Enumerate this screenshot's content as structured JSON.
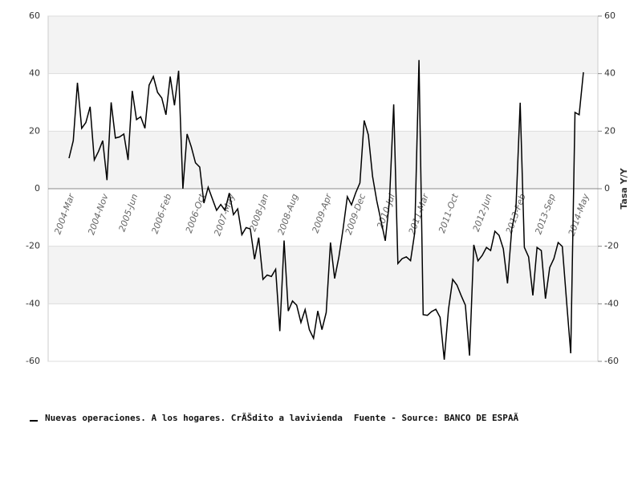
{
  "chart_data": {
    "type": "line",
    "y_label": "Tasa Y/Y",
    "source": "Fuente - Source: BANCO DE ESPAÃ",
    "ylim": [
      -60,
      60
    ],
    "yticks": [
      -60,
      -40,
      -20,
      0,
      20,
      40,
      60
    ],
    "grid": true,
    "categories": [
      "2004-Mar",
      null,
      null,
      null,
      null,
      null,
      null,
      null,
      "2004-Nov",
      null,
      null,
      null,
      null,
      null,
      null,
      "2005-Jun",
      null,
      null,
      null,
      null,
      null,
      null,
      null,
      "2006-Feb",
      null,
      null,
      null,
      null,
      null,
      null,
      null,
      "2006-Oct",
      null,
      null,
      null,
      null,
      null,
      null,
      "2007-May",
      null,
      null,
      null,
      null,
      null,
      null,
      null,
      "2008-Jan",
      null,
      null,
      null,
      null,
      null,
      null,
      "2008-Aug",
      null,
      null,
      null,
      null,
      null,
      null,
      null,
      "2009-Apr",
      null,
      null,
      null,
      null,
      null,
      null,
      null,
      "2009-Dec",
      null,
      null,
      null,
      null,
      null,
      null,
      "2010-Jul",
      null,
      null,
      null,
      null,
      null,
      null,
      null,
      "2011-Mar",
      null,
      null,
      null,
      null,
      null,
      null,
      "2011-Oct",
      null,
      null,
      null,
      null,
      null,
      null,
      null,
      "2012-Jun",
      null,
      null,
      null,
      null,
      null,
      null,
      null,
      "2013-Feb",
      null,
      null,
      null,
      null,
      null,
      null,
      "2013-Sep",
      null,
      null,
      null,
      null,
      null,
      null,
      null,
      "2014-May"
    ],
    "series": [
      {
        "name": "Nuevas operaciones. A los hogares. CrÃŠdito a lavivienda",
        "color": "#000000",
        "values": [
          10.6,
          16.7,
          36.8,
          21,
          23,
          28.5,
          10,
          13,
          16.7,
          3,
          30,
          17.6,
          18,
          19,
          10,
          34,
          24,
          25,
          21,
          36,
          39,
          33.5,
          31.5,
          25.7,
          39,
          29,
          41,
          0,
          19,
          14.5,
          9,
          7.5,
          -5,
          0.5,
          -3.5,
          -7.5,
          -5.5,
          -7.5,
          -1.5,
          -9,
          -7,
          -16,
          -13.5,
          -14,
          -24.5,
          -17,
          -31.5,
          -30,
          -30.5,
          -28,
          -49.5,
          -18,
          -42.5,
          -39,
          -40.5,
          -46.5,
          -42,
          -49,
          -52,
          -42.5,
          -49,
          -43,
          -18.7,
          -31.2,
          -23.7,
          -14,
          -2.8,
          -5.6,
          -1.4,
          2,
          23.7,
          18.7,
          4.2,
          -4.2,
          -11.2,
          -18.1,
          -4.2,
          29.3,
          -26,
          -24.3,
          -23.7,
          -25,
          -15.3,
          44.7,
          -43.8,
          -44,
          -42.7,
          -41.9,
          -44.7,
          -59.4,
          -41.9,
          -31.5,
          -33.5,
          -37.1,
          -40.5,
          -58,
          -19.5,
          -25.1,
          -23.2,
          -20.4,
          -21.5,
          -14.8,
          -16.2,
          -20.9,
          -32.9,
          -14,
          -7,
          29.9,
          -20.4,
          -23.7,
          -37.1,
          -20.4,
          -21.5,
          -38.2,
          -27.4,
          -24.3,
          -18.7,
          -20.1,
          -39.1,
          -57.2,
          26.5,
          25.7,
          40.5
        ]
      }
    ]
  }
}
